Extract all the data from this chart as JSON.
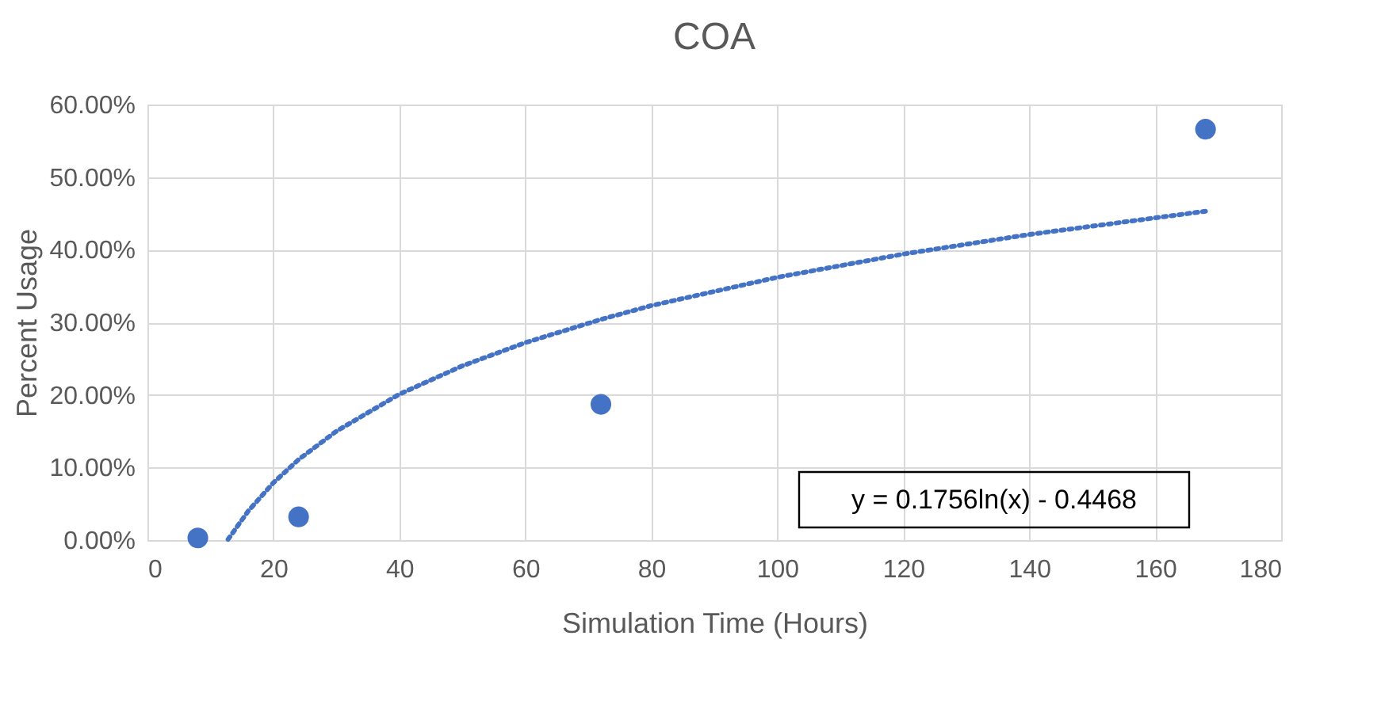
{
  "chart_data": {
    "type": "scatter",
    "title": "COA",
    "xlabel": "Simulation Time (Hours)",
    "ylabel": "Percent Usage",
    "series": [
      {
        "color": "#4472c4",
        "marker": "circle",
        "x": [
          8,
          24,
          72,
          168
        ],
        "values": [
          0.3,
          3.2,
          18.7,
          56.6
        ]
      },
      {
        "type": "line",
        "color": "#4472c4",
        "line_style": "dotted",
        "marker": "none",
        "x": [
          12.8,
          16,
          20,
          24,
          30,
          40,
          50,
          60,
          72,
          80,
          100,
          120,
          140,
          168
        ],
        "values": [
          0.1,
          4.0,
          7.9,
          11.1,
          15.0,
          20.1,
          24.0,
          27.2,
          30.4,
          32.3,
          36.2,
          39.4,
          42.1,
          45.3
        ]
      }
    ],
    "xlim": [
      0,
      180
    ],
    "xticks": [
      0,
      20,
      40,
      60,
      80,
      100,
      120,
      140,
      160,
      180
    ],
    "ylim": [
      0,
      60
    ],
    "yticks": [
      {
        "value": 0,
        "label": "0.00%"
      },
      {
        "value": 10,
        "label": "10.00%"
      },
      {
        "value": 20,
        "label": "20.00%"
      },
      {
        "value": 30,
        "label": "30.00%"
      },
      {
        "value": 40,
        "label": "40.00%"
      },
      {
        "value": 50,
        "label": "50.00%"
      },
      {
        "value": 60,
        "label": "60.00%"
      }
    ],
    "grid": true,
    "annotations": [
      "y = 0.1756ln(x) - 0.4468"
    ]
  }
}
